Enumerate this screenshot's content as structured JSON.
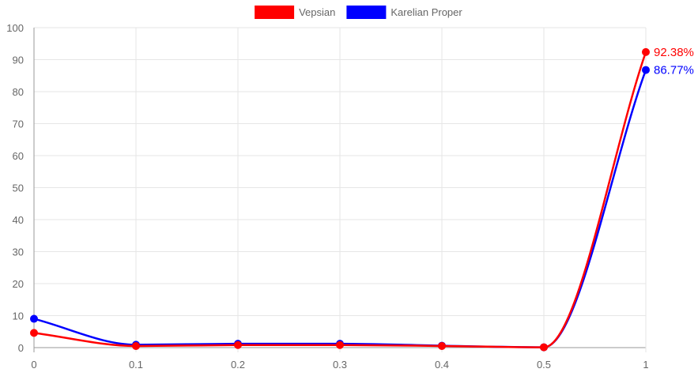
{
  "chart_data": {
    "type": "line",
    "x": [
      "0",
      "0.1",
      "0.2",
      "0.3",
      "0.4",
      "0.5",
      "1"
    ],
    "series": [
      {
        "name": "Vepsian",
        "color": "#ff0000",
        "values": [
          4.6,
          0.5,
          0.8,
          0.8,
          0.5,
          0.1,
          92.38
        ],
        "end_label": "92.38%"
      },
      {
        "name": "Karelian Proper",
        "color": "#0000ff",
        "values": [
          9.0,
          0.9,
          1.2,
          1.2,
          0.6,
          0.1,
          86.77
        ],
        "end_label": "86.77%"
      }
    ],
    "y_ticks": [
      "0",
      "10",
      "20",
      "30",
      "40",
      "50",
      "60",
      "70",
      "80",
      "90",
      "100"
    ],
    "ylim": [
      0,
      100
    ],
    "grid": true,
    "legend": "top-center",
    "title": "",
    "xlabel": "",
    "ylabel": ""
  }
}
